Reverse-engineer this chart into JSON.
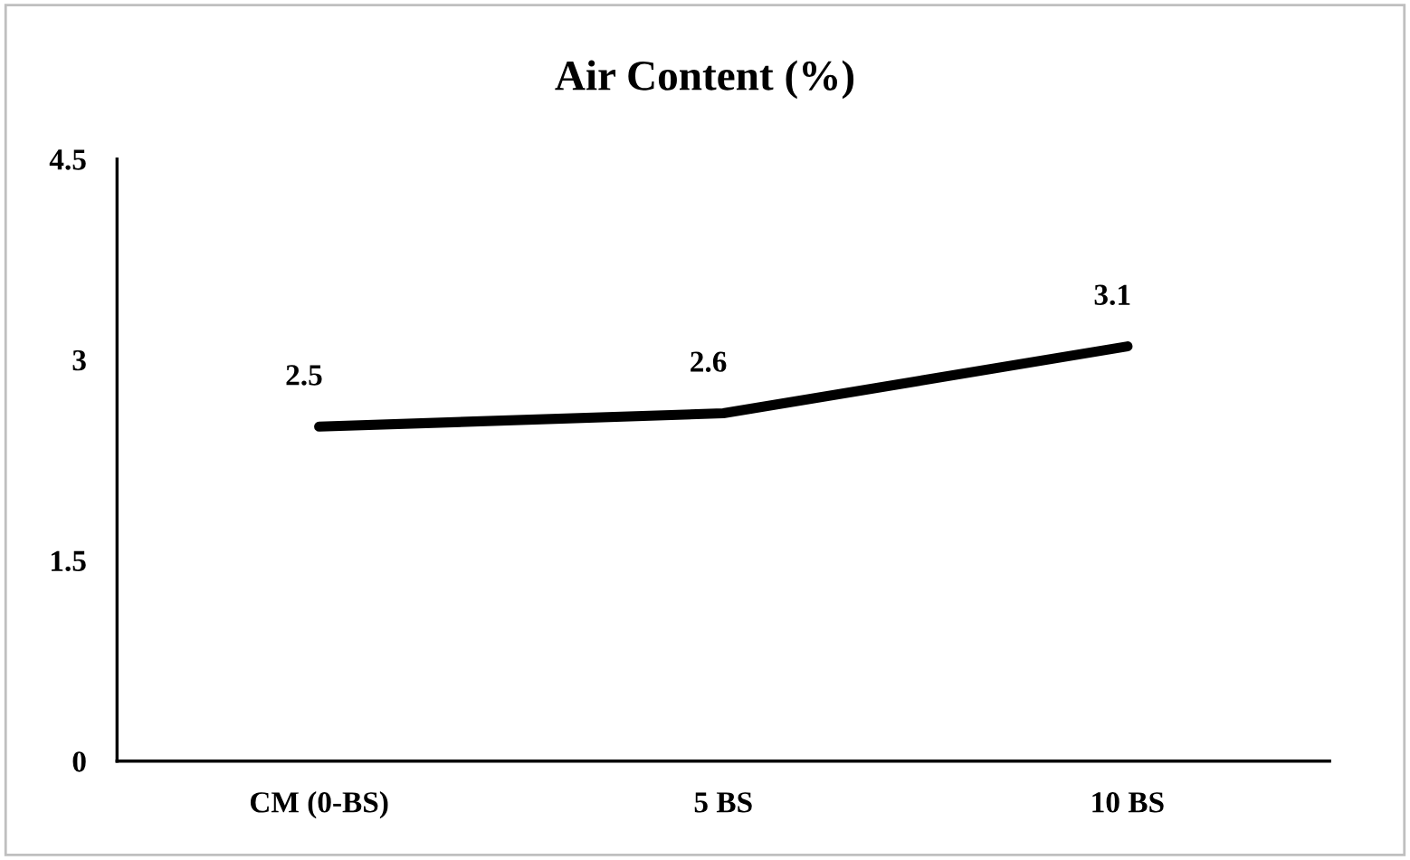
{
  "chart_data": {
    "type": "line",
    "title": "Air Content (%)",
    "categories": [
      "CM (0-BS)",
      "5 BS",
      "10 BS"
    ],
    "series": [
      {
        "color": "#000000",
        "values": [
          2.5,
          2.6,
          3.1
        ]
      }
    ],
    "ylim": [
      0,
      4.5
    ],
    "yticks": [
      0,
      1.5,
      3,
      4.5
    ],
    "data_labels": true,
    "marker": "none",
    "line_style": "solid"
  }
}
